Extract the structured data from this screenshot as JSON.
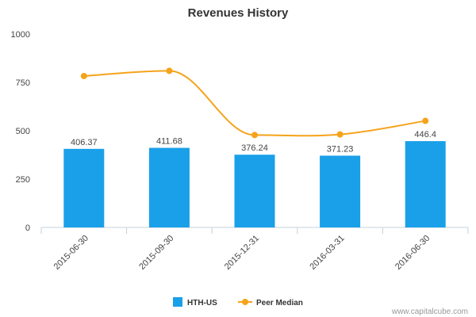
{
  "chart_data": {
    "type": "bar",
    "title": "Revenues History",
    "categories": [
      "2015-06-30",
      "2015-09-30",
      "2015-12-31",
      "2016-03-31",
      "2016-06-30"
    ],
    "series": [
      {
        "name": "HTH-US",
        "type": "bar",
        "color": "#1aa0e8",
        "values": [
          406.37,
          411.68,
          376.24,
          371.23,
          446.4
        ],
        "labels": [
          "406.37",
          "411.68",
          "376.24",
          "371.23",
          "446.4"
        ]
      },
      {
        "name": "Peer Median",
        "type": "line",
        "color": "#f5a31a",
        "values": [
          783,
          810,
          478,
          481,
          551
        ]
      }
    ],
    "ylim": [
      0,
      1000
    ],
    "yticks": [
      0,
      250,
      500,
      750,
      1000
    ],
    "grid": false,
    "legend_position": "bottom-center"
  },
  "watermark": "www.capitalcube.com"
}
